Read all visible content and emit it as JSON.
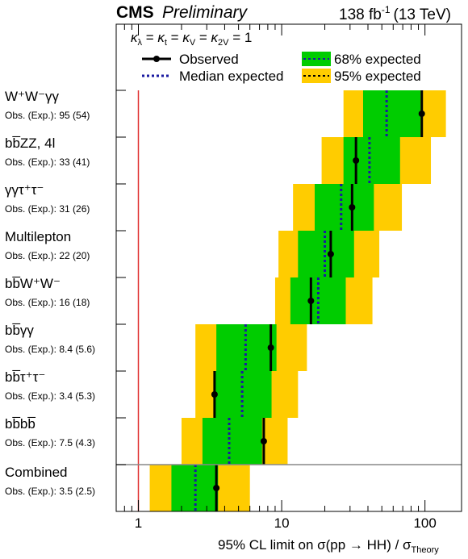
{
  "header": {
    "experiment": "CMS",
    "status": "Preliminary",
    "lumi_value": "138 fb",
    "lumi_exp": "-1",
    "lumi_energy": "(13 TeV)"
  },
  "legend": {
    "couplings": "κλ = κt = κV = κ2V = 1",
    "observed": "Observed",
    "median": "Median expected",
    "band68": "68% expected",
    "band95": "95% expected"
  },
  "colors": {
    "band68": "#00cc00",
    "band95": "#ffcc00",
    "median": "#1a1aa0",
    "observed": "#000000",
    "theory_line": "#e03030",
    "separator": "#888888"
  },
  "chart_data": {
    "type": "limit-plot",
    "x_scale": "log",
    "xlim": [
      0.7,
      180
    ],
    "xlabel": "95% CL limit on σ(pp → HH) / σTheory",
    "x_ticks": [
      1,
      10,
      100
    ],
    "x_tick_labels": [
      "1",
      "10",
      "100"
    ],
    "reference_line": 1,
    "channels": [
      {
        "label": "W⁺W⁻γγ",
        "sub": "Obs. (Exp.): 95 (54)",
        "observed": 95,
        "expected": 54,
        "band68": [
          37,
          93
        ],
        "band95": [
          27,
          140
        ]
      },
      {
        "label": "bb̅ZZ, 4l",
        "sub": "Obs. (Exp.): 33 (41)",
        "observed": 33,
        "expected": 41,
        "band68": [
          27,
          67
        ],
        "band95": [
          19,
          110
        ]
      },
      {
        "label": "γγτ⁺τ⁻",
        "sub": "Obs. (Exp.): 31 (26)",
        "observed": 31,
        "expected": 26,
        "band68": [
          17,
          44
        ],
        "band95": [
          12,
          69
        ]
      },
      {
        "label": "Multilepton",
        "sub": "Obs. (Exp.): 22 (20)",
        "observed": 22,
        "expected": 20,
        "band68": [
          13,
          32
        ],
        "band95": [
          9.5,
          48
        ]
      },
      {
        "label": "bb̅W⁺W⁻",
        "sub": "Obs. (Exp.): 16 (18)",
        "observed": 16,
        "expected": 18,
        "band68": [
          11.5,
          28
        ],
        "band95": [
          9,
          43
        ]
      },
      {
        "label": "bb̅γγ",
        "sub": "Obs. (Exp.): 8.4 (5.6)",
        "observed": 8.4,
        "expected": 5.6,
        "band68": [
          3.5,
          9.2
        ],
        "band95": [
          2.5,
          15
        ]
      },
      {
        "label": "bb̅τ⁺τ⁻",
        "sub": "Obs. (Exp.): 3.4 (5.3)",
        "observed": 3.4,
        "expected": 5.3,
        "band68": [
          3.4,
          8.5
        ],
        "band95": [
          2.5,
          13
        ]
      },
      {
        "label": "bb̅bb̅",
        "sub": "Obs. (Exp.): 7.5 (4.3)",
        "observed": 7.5,
        "expected": 4.3,
        "band68": [
          2.8,
          7.3
        ],
        "band95": [
          2,
          11
        ]
      },
      {
        "label": "Combined",
        "sub": "Obs. (Exp.): 3.5 (2.5)",
        "observed": 3.5,
        "expected": 2.5,
        "band68": [
          1.7,
          3.6
        ],
        "band95": [
          1.2,
          6
        ]
      }
    ]
  }
}
